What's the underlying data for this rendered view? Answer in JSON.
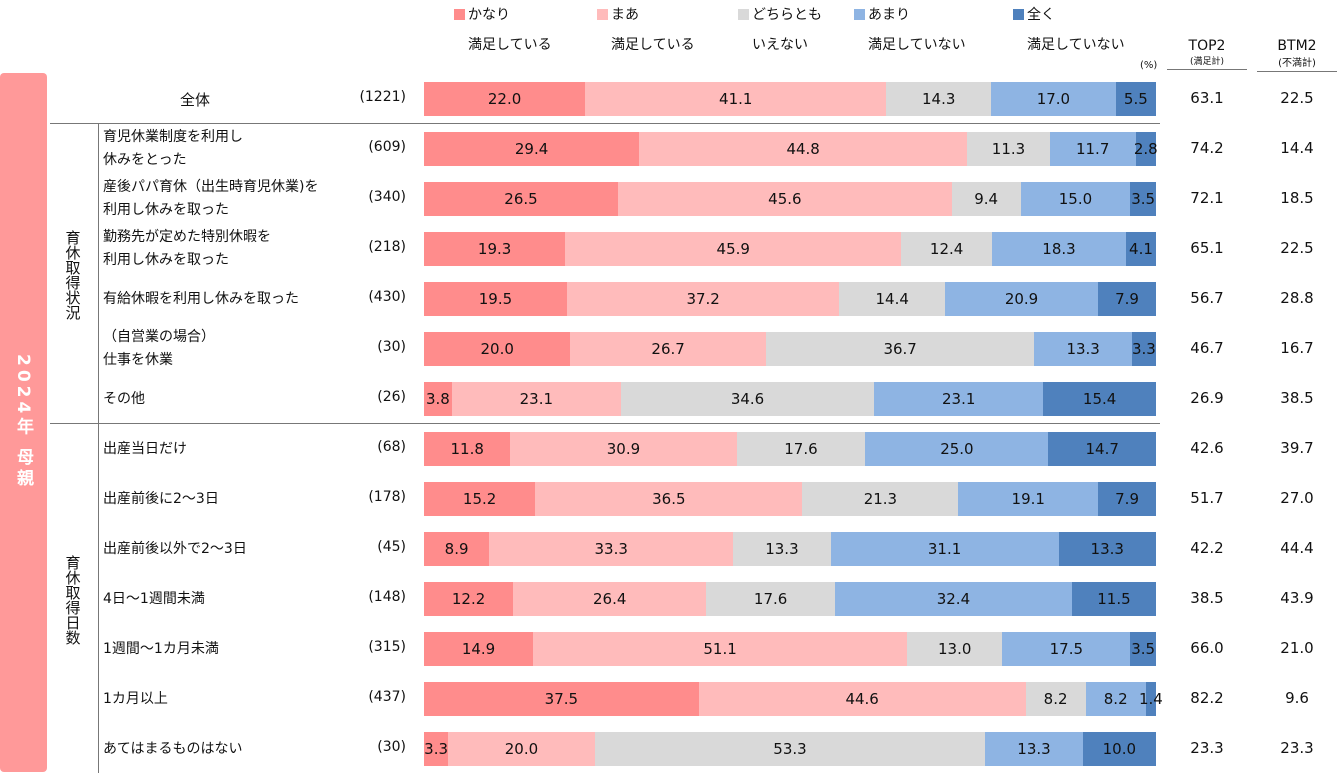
{
  "chart_data": {
    "type": "bar",
    "orientation": "horizontal-stacked-100",
    "unit_label": "(%)",
    "side_title": "2024年 母親",
    "legend": [
      {
        "line1": "かなり",
        "line2": "満足している",
        "color": "#FF8C8C"
      },
      {
        "line1": "まあ",
        "line2": "満足している",
        "color": "#FFBBBB"
      },
      {
        "line1": "どちらとも",
        "line2": "いえない",
        "color": "#D9D9D9"
      },
      {
        "line1": "あまり",
        "line2": "満足していない",
        "color": "#8EB4E3"
      },
      {
        "line1": "全く",
        "line2": "満足していない",
        "color": "#4F81BD"
      }
    ],
    "totals_headers": [
      {
        "label": "TOP2",
        "sub": "(満足計)"
      },
      {
        "label": "BTM2",
        "sub": "(不満計)"
      }
    ],
    "groups": [
      {
        "label": "育休取得状況"
      },
      {
        "label": "育休取得日数"
      }
    ],
    "rows": [
      {
        "label": "全体",
        "n": "(1221)",
        "values": [
          22.0,
          41.1,
          14.3,
          17.0,
          5.5
        ],
        "top2": "63.1",
        "btm2": "22.5"
      },
      {
        "label": "育児休業制度を利用し\n休みをとった",
        "n": "(609)",
        "values": [
          29.4,
          44.8,
          11.3,
          11.7,
          2.8
        ],
        "top2": "74.2",
        "btm2": "14.4"
      },
      {
        "label": "産後パパ育休（出生時育児休業)を\n利用し休みを取った",
        "n": "(340)",
        "values": [
          26.5,
          45.6,
          9.4,
          15.0,
          3.5
        ],
        "top2": "72.1",
        "btm2": "18.5"
      },
      {
        "label": "勤務先が定めた特別休暇を\n利用し休みを取った",
        "n": "(218)",
        "values": [
          19.3,
          45.9,
          12.4,
          18.3,
          4.1
        ],
        "top2": "65.1",
        "btm2": "22.5"
      },
      {
        "label": "有給休暇を利用し休みを取った",
        "n": "(430)",
        "values": [
          19.5,
          37.2,
          14.4,
          20.9,
          7.9
        ],
        "top2": "56.7",
        "btm2": "28.8"
      },
      {
        "label": "（自営業の場合）\n仕事を休業",
        "n": "(30)",
        "values": [
          20.0,
          26.7,
          36.7,
          13.3,
          3.3
        ],
        "top2": "46.7",
        "btm2": "16.7"
      },
      {
        "label": "その他",
        "n": "(26)",
        "values": [
          3.8,
          23.1,
          34.6,
          23.1,
          15.4
        ],
        "top2": "26.9",
        "btm2": "38.5"
      },
      {
        "label": "出産当日だけ",
        "n": "(68)",
        "values": [
          11.8,
          30.9,
          17.6,
          25.0,
          14.7
        ],
        "top2": "42.6",
        "btm2": "39.7"
      },
      {
        "label": "出産前後に2～3日",
        "n": "(178)",
        "values": [
          15.2,
          36.5,
          21.3,
          19.1,
          7.9
        ],
        "top2": "51.7",
        "btm2": "27.0"
      },
      {
        "label": "出産前後以外で2～3日",
        "n": "(45)",
        "values": [
          8.9,
          33.3,
          13.3,
          31.1,
          13.3
        ],
        "top2": "42.2",
        "btm2": "44.4"
      },
      {
        "label": "4日～1週間未満",
        "n": "(148)",
        "values": [
          12.2,
          26.4,
          17.6,
          32.4,
          11.5
        ],
        "top2": "38.5",
        "btm2": "43.9"
      },
      {
        "label": "1週間～1カ月未満",
        "n": "(315)",
        "values": [
          14.9,
          51.1,
          13.0,
          17.5,
          3.5
        ],
        "top2": "66.0",
        "btm2": "21.0"
      },
      {
        "label": "1カ月以上",
        "n": "(437)",
        "values": [
          37.5,
          44.6,
          8.2,
          8.2,
          1.4
        ],
        "top2": "82.2",
        "btm2": "9.6"
      },
      {
        "label": "あてはまるものはない",
        "n": "(30)",
        "values": [
          3.3,
          20.0,
          53.3,
          13.3,
          10.0
        ],
        "top2": "23.3",
        "btm2": "23.3"
      }
    ],
    "xlim": [
      0,
      100
    ]
  }
}
